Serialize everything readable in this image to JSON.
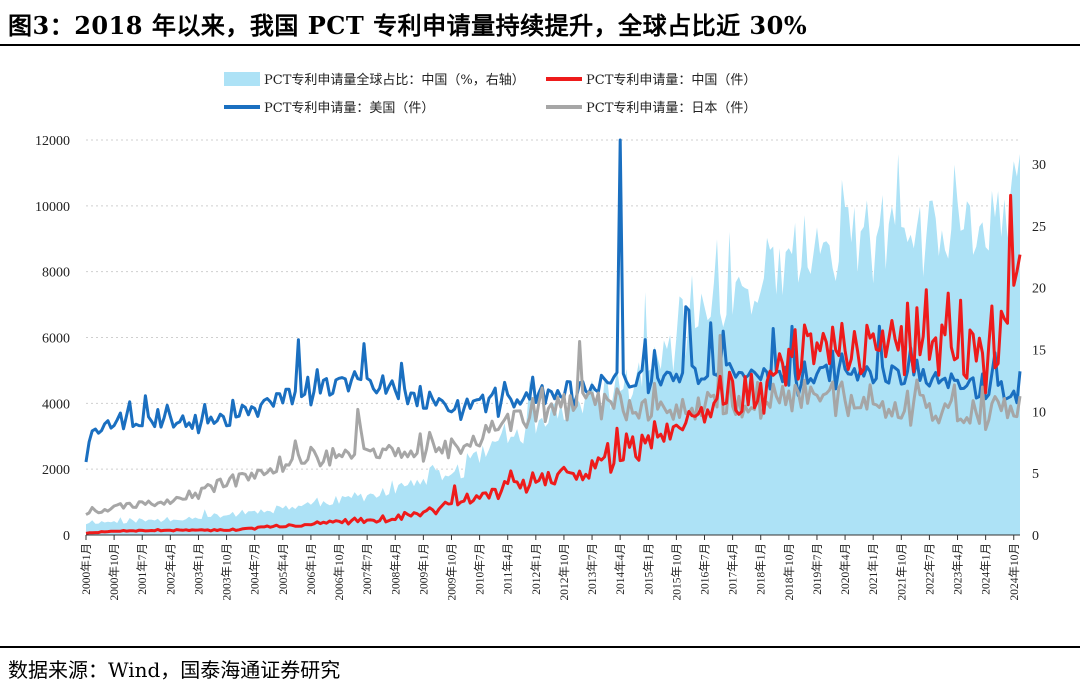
{
  "figure": {
    "title": "图3：2018 年以来，我国 PCT 专利申请量持续提升，全球占比近 30%",
    "source": "数据来源：Wind，国泰海通证券研究"
  },
  "colors": {
    "share_area": "#ADE2F6",
    "china": "#EE1B1B",
    "usa": "#1A6FC0",
    "japan": "#A6A6A6"
  },
  "chart_data": {
    "type": "line",
    "x_start": "2000-01",
    "x_end": "2024-12",
    "frequency": "monthly",
    "x_tick_labels": [
      "2000年1月",
      "2000年10月",
      "2001年7月",
      "2002年4月",
      "2003年1月",
      "2003年10月",
      "2004年7月",
      "2005年4月",
      "2006年1月",
      "2006年10月",
      "2007年7月",
      "2008年4月",
      "2009年1月",
      "2009年10月",
      "2010年7月",
      "2011年4月",
      "2012年1月",
      "2012年10月",
      "2013年7月",
      "2014年4月",
      "2015年1月",
      "2015年10月",
      "2016年7月",
      "2017年4月",
      "2018年1月",
      "2018年10月",
      "2019年7月",
      "2020年4月",
      "2021年1月",
      "2021年10月",
      "2022年7月",
      "2023年4月",
      "2024年1月",
      "2024年10月"
    ],
    "y_left": {
      "ticks": [
        "0",
        "2000",
        "4000",
        "6000",
        "8000",
        "10000",
        "12000"
      ],
      "min": 0,
      "max": 12000
    },
    "y_right": {
      "ticks": [
        "0",
        "5",
        "10",
        "15",
        "20",
        "25",
        "30"
      ],
      "min": 0,
      "max": 30
    },
    "grid": true,
    "legend_position": "top",
    "series": [
      {
        "name": "PCT专利申请量全球占比：中国（%，右轴）",
        "type": "area",
        "axis": "right",
        "color_key": "share_area",
        "anchors": [
          [
            2000.0,
            1.0
          ],
          [
            2002.0,
            1.2
          ],
          [
            2004.0,
            1.7
          ],
          [
            2006.0,
            2.5
          ],
          [
            2008.0,
            3.4
          ],
          [
            2010.0,
            5.2
          ],
          [
            2011.0,
            7.2
          ],
          [
            2012.0,
            8.8
          ],
          [
            2013.0,
            10.5
          ],
          [
            2014.0,
            11.5
          ],
          [
            2015.0,
            13.0
          ],
          [
            2016.0,
            16.5
          ],
          [
            2017.0,
            19.5
          ],
          [
            2018.0,
            20.0
          ],
          [
            2019.0,
            22.0
          ],
          [
            2020.0,
            23.0
          ],
          [
            2021.0,
            24.5
          ],
          [
            2022.0,
            23.5
          ],
          [
            2023.0,
            24.0
          ],
          [
            2024.0,
            25.0
          ],
          [
            2024.99,
            27.0
          ]
        ],
        "noise_amp": 0.14,
        "seed": 11
      },
      {
        "name": "PCT专利申请量：中国（件）",
        "type": "line",
        "axis": "left",
        "color_key": "china",
        "anchors": [
          [
            2000.0,
            60
          ],
          [
            2001.0,
            130
          ],
          [
            2002.0,
            140
          ],
          [
            2003.0,
            140
          ],
          [
            2004.0,
            160
          ],
          [
            2005.0,
            250
          ],
          [
            2006.0,
            330
          ],
          [
            2007.0,
            420
          ],
          [
            2008.0,
            480
          ],
          [
            2009.0,
            650
          ],
          [
            2010.0,
            950
          ],
          [
            2011.0,
            1350
          ],
          [
            2012.0,
            1600
          ],
          [
            2013.0,
            1850
          ],
          [
            2014.0,
            2300
          ],
          [
            2015.0,
            2800
          ],
          [
            2016.0,
            3550
          ],
          [
            2017.0,
            4250
          ],
          [
            2018.0,
            4300
          ],
          [
            2019.0,
            5200
          ],
          [
            2020.0,
            5600
          ],
          [
            2021.0,
            5900
          ],
          [
            2022.0,
            5650
          ],
          [
            2023.0,
            5500
          ],
          [
            2024.0,
            5300
          ],
          [
            2024.6,
            6500
          ],
          [
            2024.99,
            8400
          ]
        ],
        "noise_amp": 0.16,
        "seed": 7
      },
      {
        "name": "PCT专利申请量：美国（件）",
        "type": "line",
        "axis": "left",
        "color_key": "usa",
        "anchors": [
          [
            2000.0,
            2450
          ],
          [
            2000.3,
            3300
          ],
          [
            2001.0,
            3500
          ],
          [
            2002.0,
            3450
          ],
          [
            2003.0,
            3400
          ],
          [
            2004.0,
            3600
          ],
          [
            2005.0,
            4050
          ],
          [
            2006.0,
            4400
          ],
          [
            2007.0,
            4600
          ],
          [
            2008.0,
            4400
          ],
          [
            2009.0,
            4000
          ],
          [
            2010.0,
            3950
          ],
          [
            2011.0,
            4000
          ],
          [
            2012.0,
            4200
          ],
          [
            2013.0,
            4400
          ],
          [
            2014.0,
            4600
          ],
          [
            2015.0,
            4800
          ],
          [
            2016.0,
            4850
          ],
          [
            2017.0,
            4850
          ],
          [
            2018.0,
            4750
          ],
          [
            2019.0,
            4800
          ],
          [
            2020.0,
            4850
          ],
          [
            2021.0,
            4950
          ],
          [
            2022.0,
            4800
          ],
          [
            2023.0,
            4600
          ],
          [
            2024.0,
            4400
          ],
          [
            2024.99,
            4300
          ]
        ],
        "noise_amp": 0.07,
        "seed": 3,
        "spike": {
          "x": 2014.22,
          "y": 12000
        }
      },
      {
        "name": "PCT专利申请量：日本（件）",
        "type": "line",
        "axis": "left",
        "color_key": "japan",
        "anchors": [
          [
            2000.0,
            700
          ],
          [
            2001.0,
            850
          ],
          [
            2002.0,
            1000
          ],
          [
            2003.0,
            1300
          ],
          [
            2004.0,
            1700
          ],
          [
            2005.0,
            2050
          ],
          [
            2006.0,
            2300
          ],
          [
            2007.0,
            2450
          ],
          [
            2008.0,
            2500
          ],
          [
            2009.0,
            2600
          ],
          [
            2010.0,
            2650
          ],
          [
            2011.0,
            3300
          ],
          [
            2012.0,
            3700
          ],
          [
            2013.0,
            3900
          ],
          [
            2014.0,
            3950
          ],
          [
            2015.0,
            3850
          ],
          [
            2016.0,
            3850
          ],
          [
            2017.0,
            3950
          ],
          [
            2018.0,
            4100
          ],
          [
            2019.0,
            4200
          ],
          [
            2020.0,
            4050
          ],
          [
            2021.0,
            3950
          ],
          [
            2022.0,
            3900
          ],
          [
            2023.0,
            3800
          ],
          [
            2024.0,
            3750
          ],
          [
            2024.99,
            3950
          ]
        ],
        "noise_amp": 0.11,
        "seed": 5
      }
    ]
  }
}
